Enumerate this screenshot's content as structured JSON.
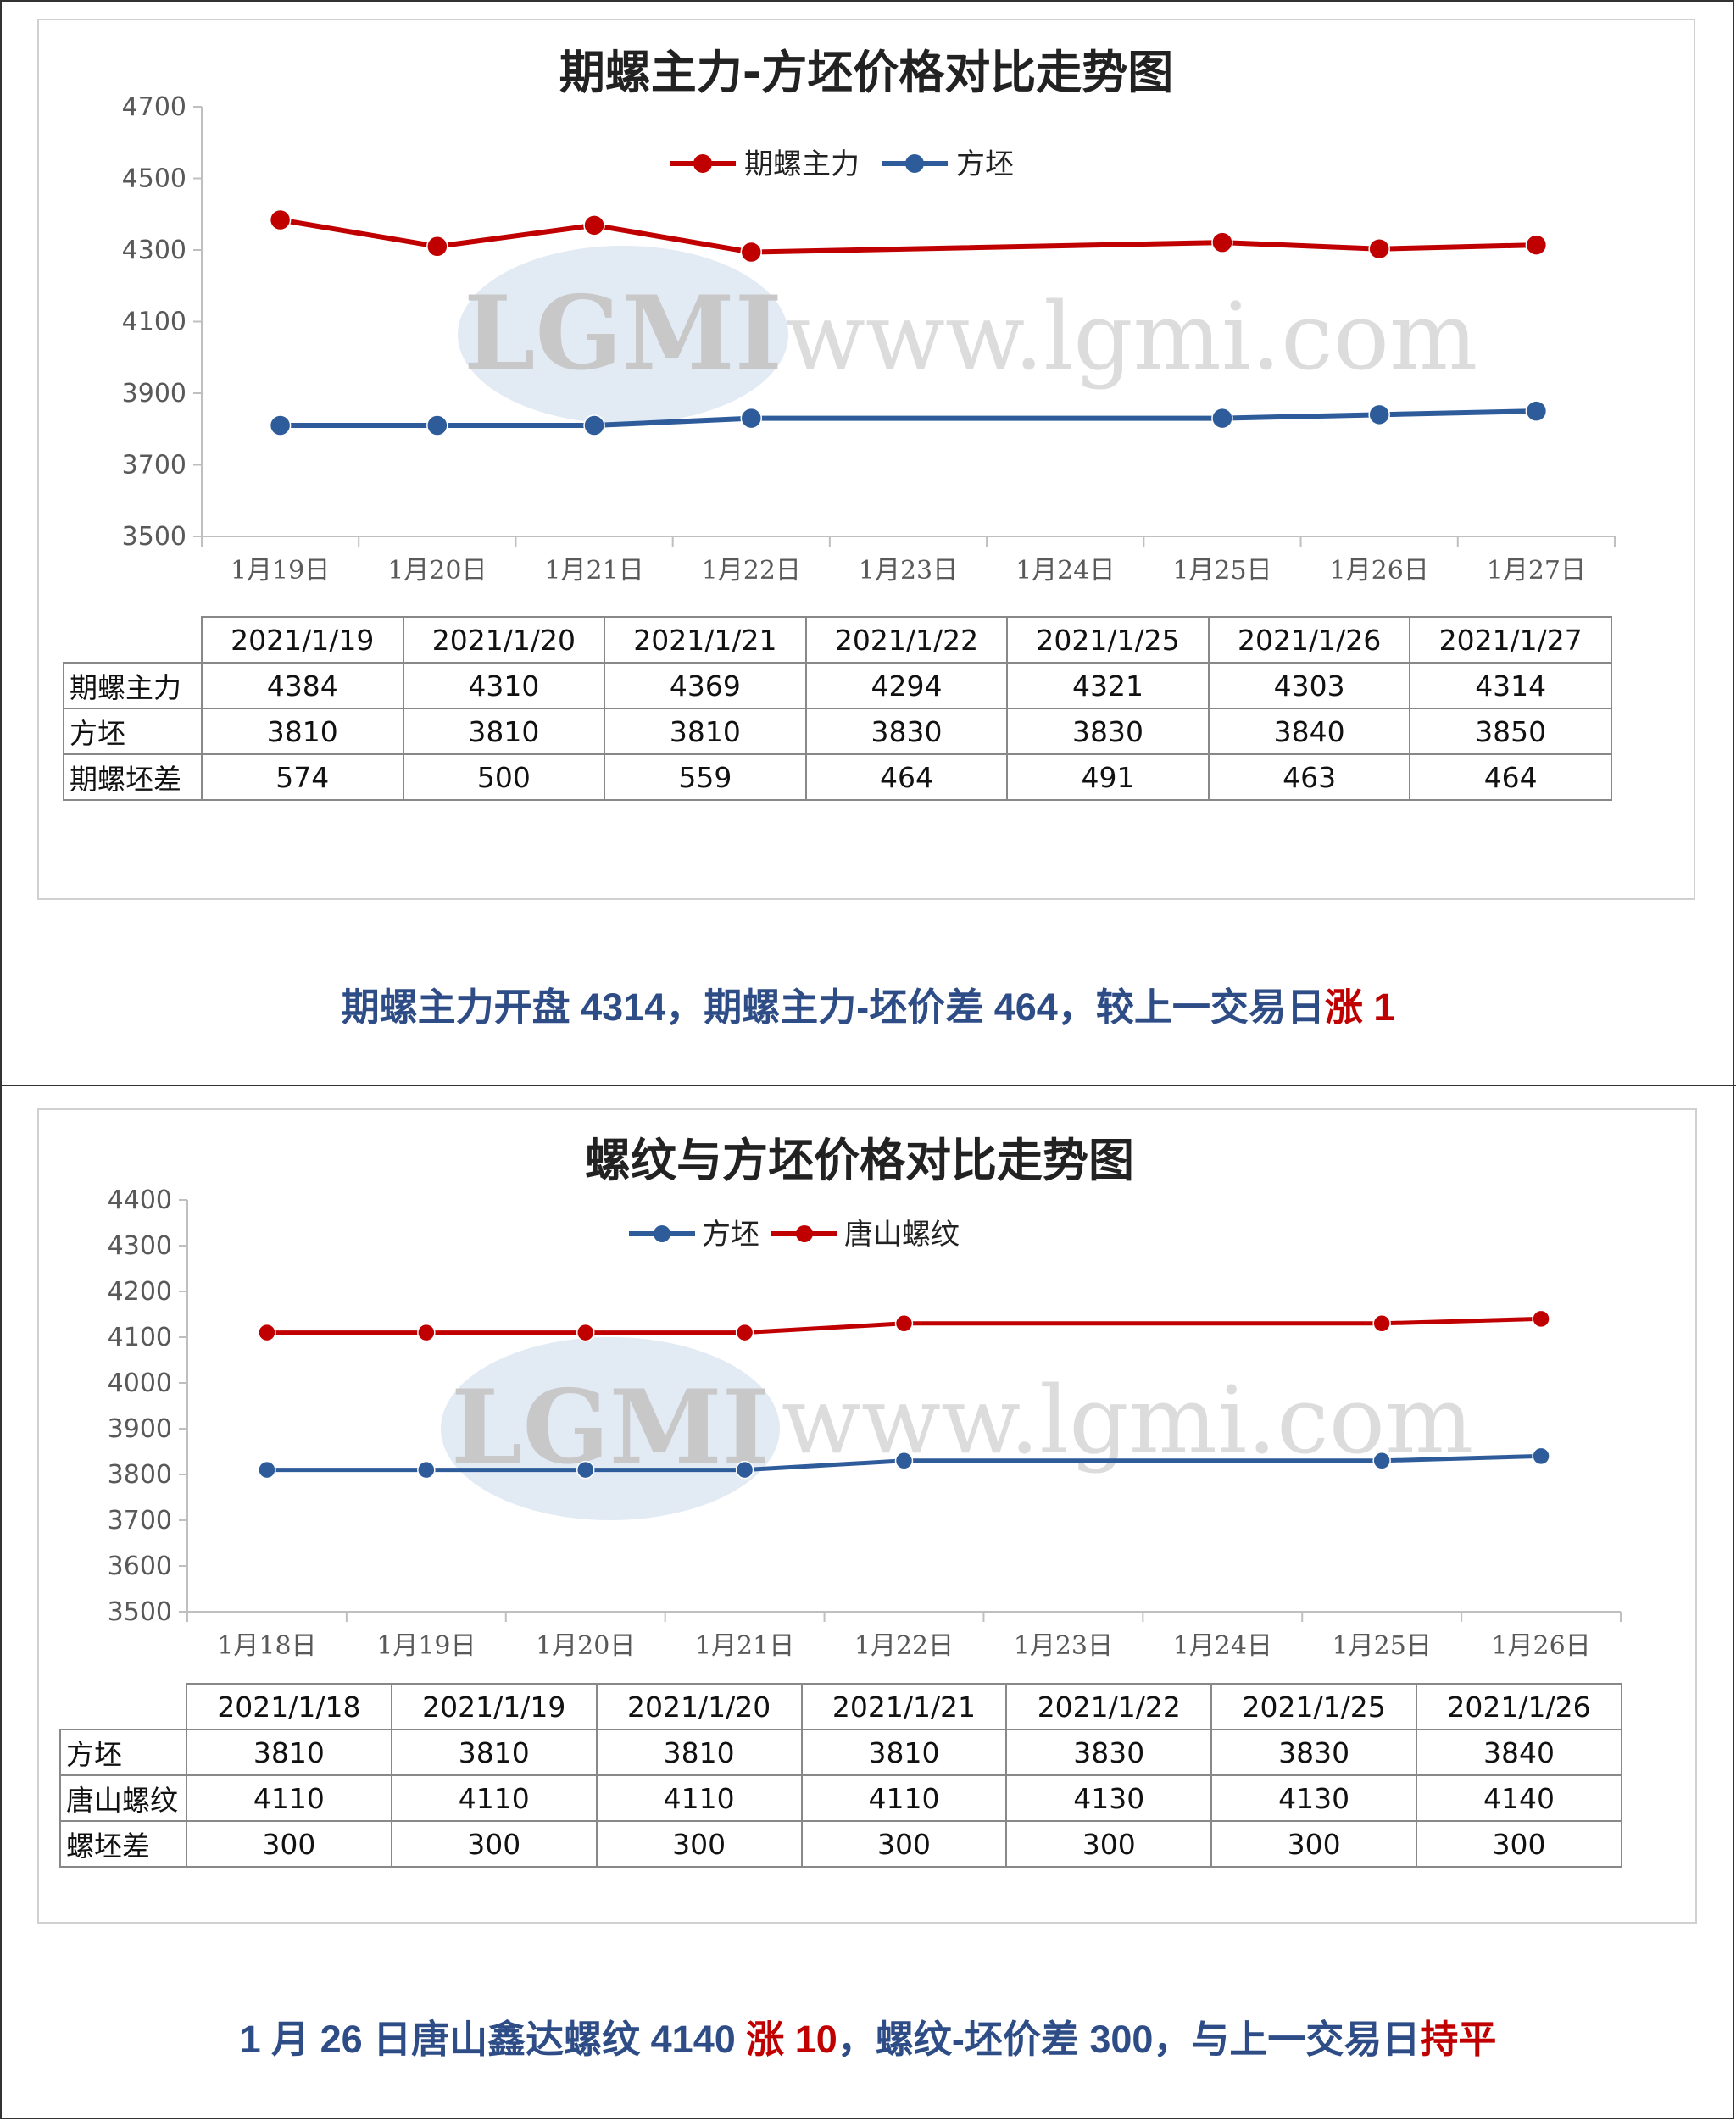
{
  "colors": {
    "red": "#c00000",
    "blue": "#2e5c9a",
    "summary_blue": "#2e4d87",
    "axis": "#bfbfbf"
  },
  "chart1": {
    "title": "期螺主力-方坯价格对比走势图",
    "legend": [
      "期螺主力",
      "方坯"
    ],
    "y_ticks": [
      "4700",
      "4500",
      "4300",
      "4100",
      "3900",
      "3700",
      "3500"
    ],
    "x_ticks": [
      "1月19日",
      "1月20日",
      "1月21日",
      "1月22日",
      "1月23日",
      "1月24日",
      "1月25日",
      "1月26日",
      "1月27日"
    ],
    "watermark": "www.lgmi.com",
    "logo": "LGMI",
    "table": {
      "header": [
        "2021/1/19",
        "2021/1/20",
        "2021/1/21",
        "2021/1/22",
        "2021/1/25",
        "2021/1/26",
        "2021/1/27"
      ],
      "rows": [
        {
          "label": "期螺主力",
          "values": [
            "4384",
            "4310",
            "4369",
            "4294",
            "4321",
            "4303",
            "4314"
          ]
        },
        {
          "label": "方坯",
          "values": [
            "3810",
            "3810",
            "3810",
            "3830",
            "3830",
            "3840",
            "3850"
          ]
        },
        {
          "label": "期螺坯差",
          "values": [
            "574",
            "500",
            "559",
            "464",
            "491",
            "463",
            "464"
          ]
        }
      ]
    },
    "summary": {
      "part1": "期螺主力开盘 4314，期螺主力-坯价差 464，较上一交易日",
      "part2": "涨 1"
    }
  },
  "chart2": {
    "title": "螺纹与方坯价格对比走势图",
    "legend": [
      "方坯",
      "唐山螺纹"
    ],
    "y_ticks": [
      "4400",
      "4300",
      "4200",
      "4100",
      "4000",
      "3900",
      "3800",
      "3700",
      "3600",
      "3500"
    ],
    "x_ticks": [
      "1月18日",
      "1月19日",
      "1月20日",
      "1月21日",
      "1月22日",
      "1月23日",
      "1月24日",
      "1月25日",
      "1月26日"
    ],
    "watermark": "www.lgmi.com",
    "logo": "LGMI",
    "table": {
      "header": [
        "2021/1/18",
        "2021/1/19",
        "2021/1/20",
        "2021/1/21",
        "2021/1/22",
        "2021/1/25",
        "2021/1/26"
      ],
      "rows": [
        {
          "label": "方坯",
          "values": [
            "3810",
            "3810",
            "3810",
            "3810",
            "3830",
            "3830",
            "3840"
          ]
        },
        {
          "label": "唐山螺纹",
          "values": [
            "4110",
            "4110",
            "4110",
            "4110",
            "4130",
            "4130",
            "4140"
          ]
        },
        {
          "label": "螺坯差",
          "values": [
            "300",
            "300",
            "300",
            "300",
            "300",
            "300",
            "300"
          ]
        }
      ]
    },
    "summary": {
      "part1": "1 月 26 日唐山鑫达螺纹 4140 ",
      "part2": "涨 10",
      "part3": "，螺纹-坯价差 300，与上一交易日",
      "part4": "持平"
    }
  },
  "chart_data": [
    {
      "type": "line",
      "title": "期螺主力-方坯价格对比走势图",
      "x": [
        "1月19日",
        "1月20日",
        "1月21日",
        "1月22日",
        "1月25日",
        "1月26日",
        "1月27日"
      ],
      "series": [
        {
          "name": "期螺主力",
          "values": [
            4384,
            4310,
            4369,
            4294,
            4321,
            4303,
            4314
          ],
          "color": "#c00000"
        },
        {
          "name": "方坯",
          "values": [
            3810,
            3810,
            3810,
            3830,
            3830,
            3840,
            3850
          ],
          "color": "#2e5c9a"
        }
      ],
      "ylim": [
        3500,
        4700
      ],
      "grid": false,
      "legend": "top"
    },
    {
      "type": "line",
      "title": "螺纹与方坯价格对比走势图",
      "x": [
        "1月18日",
        "1月19日",
        "1月20日",
        "1月21日",
        "1月22日",
        "1月25日",
        "1月26日"
      ],
      "series": [
        {
          "name": "方坯",
          "values": [
            3810,
            3810,
            3810,
            3810,
            3830,
            3830,
            3840
          ],
          "color": "#2e5c9a"
        },
        {
          "name": "唐山螺纹",
          "values": [
            4110,
            4110,
            4110,
            4110,
            4130,
            4130,
            4140
          ],
          "color": "#c00000"
        }
      ],
      "ylim": [
        3500,
        4400
      ],
      "grid": false,
      "legend": "top"
    }
  ]
}
